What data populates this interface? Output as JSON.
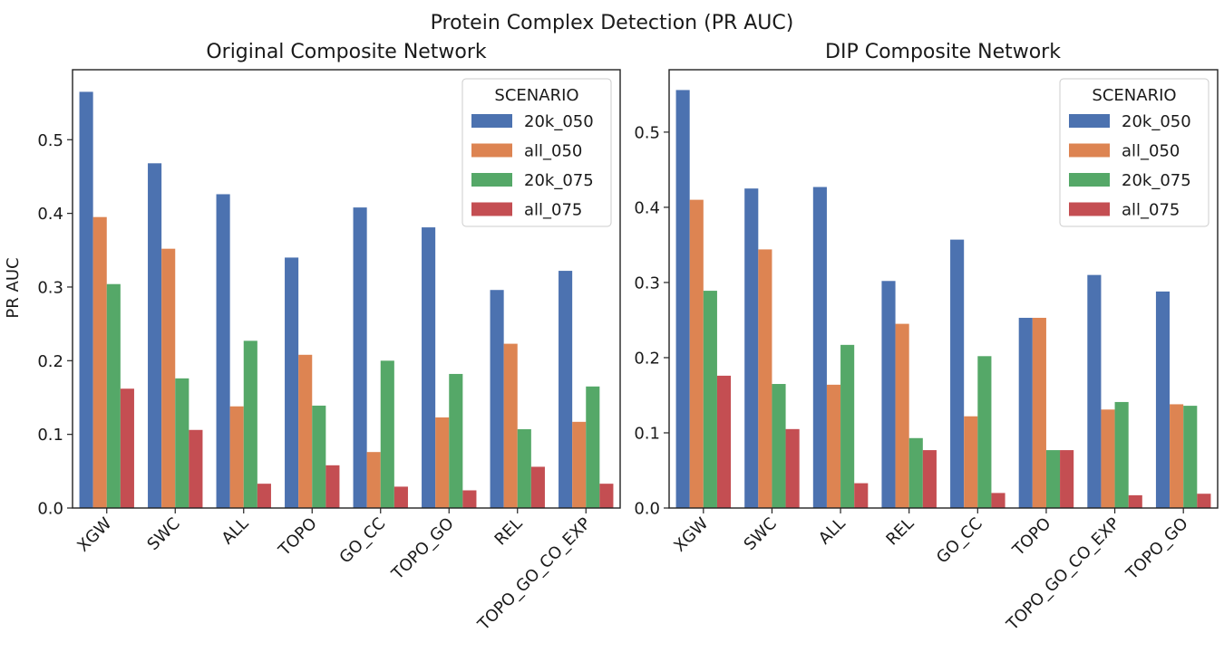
{
  "figure": {
    "suptitle": "Protein Complex Detection (PR AUC)"
  },
  "palette": [
    "#4c72b0",
    "#dd8452",
    "#55a868",
    "#c44e52"
  ],
  "chart_data": [
    {
      "type": "bar",
      "title": "Original Composite Network",
      "xlabel": "",
      "ylabel": "PR AUC",
      "ylim": [
        0,
        0.595
      ],
      "yticks": [
        "0.0",
        "0.1",
        "0.2",
        "0.3",
        "0.4",
        "0.5"
      ],
      "categories": [
        "XGW",
        "SWC",
        "ALL",
        "TOPO",
        "GO_CC",
        "TOPO_GO",
        "REL",
        "TOPO_GO_CO_EXP"
      ],
      "legend": {
        "title": "SCENARIO",
        "placement": "top-right"
      },
      "series": [
        {
          "name": "20k_050",
          "values": [
            0.565,
            0.468,
            0.426,
            0.34,
            0.408,
            0.381,
            0.296,
            0.322
          ]
        },
        {
          "name": "all_050",
          "values": [
            0.395,
            0.352,
            0.138,
            0.208,
            0.076,
            0.123,
            0.223,
            0.117
          ]
        },
        {
          "name": "20k_075",
          "values": [
            0.304,
            0.176,
            0.227,
            0.139,
            0.2,
            0.182,
            0.107,
            0.165
          ]
        },
        {
          "name": "all_075",
          "values": [
            0.162,
            0.106,
            0.033,
            0.058,
            0.029,
            0.024,
            0.056,
            0.033
          ]
        }
      ]
    },
    {
      "type": "bar",
      "title": "DIP Composite Network",
      "xlabel": "",
      "ylabel": "",
      "ylim": [
        0,
        0.583
      ],
      "yticks": [
        "0.0",
        "0.1",
        "0.2",
        "0.3",
        "0.4",
        "0.5"
      ],
      "categories": [
        "XGW",
        "SWC",
        "ALL",
        "REL",
        "GO_CC",
        "TOPO",
        "TOPO_GO_CO_EXP",
        "TOPO_GO"
      ],
      "legend": {
        "title": "SCENARIO",
        "placement": "top-right"
      },
      "series": [
        {
          "name": "20k_050",
          "values": [
            0.556,
            0.425,
            0.427,
            0.302,
            0.357,
            0.253,
            0.31,
            0.288
          ]
        },
        {
          "name": "all_050",
          "values": [
            0.41,
            0.344,
            0.164,
            0.245,
            0.122,
            0.253,
            0.131,
            0.138
          ]
        },
        {
          "name": "20k_075",
          "values": [
            0.289,
            0.165,
            0.217,
            0.093,
            0.202,
            0.077,
            0.141,
            0.136
          ]
        },
        {
          "name": "all_075",
          "values": [
            0.176,
            0.105,
            0.033,
            0.077,
            0.02,
            0.077,
            0.017,
            0.019
          ]
        }
      ]
    }
  ]
}
